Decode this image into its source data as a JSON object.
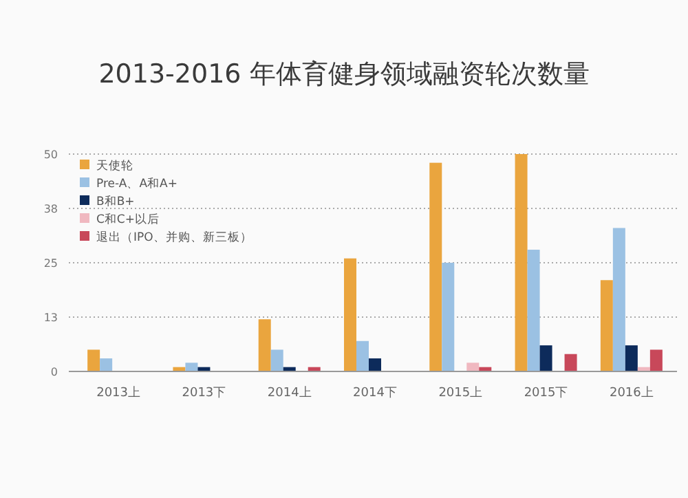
{
  "chart_data": {
    "type": "bar",
    "title": "2013-2016 年体育健身领域融资轮次数量",
    "categories": [
      "2013上",
      "2013下",
      "2014上",
      "2014下",
      "2015上",
      "2015下",
      "2016上"
    ],
    "series": [
      {
        "name": "天使轮",
        "color": "#eaa53e",
        "values": [
          5,
          1,
          12,
          26,
          48,
          50,
          21
        ]
      },
      {
        "name": "Pre-A、A和A+",
        "color": "#9bc1e3",
        "values": [
          3,
          2,
          5,
          7,
          25,
          28,
          33
        ]
      },
      {
        "name": "B和B+",
        "color": "#0d2b5b",
        "values": [
          null,
          1,
          1,
          3,
          null,
          6,
          6
        ]
      },
      {
        "name": "C和C+以后",
        "color": "#f0b8c0",
        "values": [
          null,
          null,
          null,
          null,
          2,
          null,
          1
        ]
      },
      {
        "name": "退出（IPO、并购、新三板）",
        "color": "#c8485a",
        "values": [
          null,
          null,
          1,
          null,
          1,
          4,
          5
        ]
      }
    ],
    "ylim": [
      0,
      50
    ],
    "yticks": [
      0,
      {
        "value": 12.5,
        "label": "13"
      },
      25,
      {
        "value": 37.5,
        "label": "38"
      },
      50
    ],
    "grid": "y",
    "legend": "top left"
  }
}
